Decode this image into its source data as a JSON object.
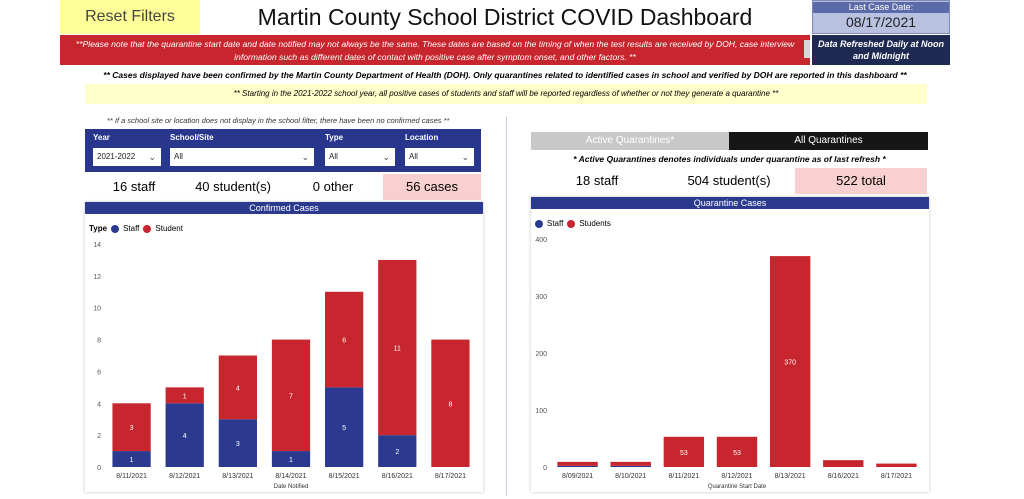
{
  "header": {
    "reset_label": "Reset Filters",
    "title": "Martin County School District COVID Dashboard",
    "last_case_label": "Last Case Date:",
    "last_case_value": "08/17/2021",
    "refresh_note": "Data Refreshed Daily at Noon and Midnight"
  },
  "banner": {
    "text": "**Please note that the quarantine start date and date notified may not always be the same. These dates are based on the timing of when the test results are received by DOH, case interview information such as different dates of contact with positive case after symptom onset, and other factors. **"
  },
  "notes": {
    "dho_note": "** Cases displayed have been confirmed by the Martin County Department of Health (DOH). Only quarantines related to identified cases in school and verified by DOH are reported in this dashboard **",
    "year_note": "**  Starting in the 2021-2022 school year, all positive cases of students and staff will be reported regardless of whether or not they generate a quarantine **",
    "school_note": "** If a school site or location does not display in the school filter, there have been no confirmed cases  **"
  },
  "filters": {
    "year": {
      "label": "Year",
      "value": "2021-2022"
    },
    "school": {
      "label": "School/Site",
      "value": "All"
    },
    "type": {
      "label": "Type",
      "value": "All"
    },
    "location": {
      "label": "Location",
      "value": "All"
    }
  },
  "cases_stats": {
    "staff": "16 staff",
    "students": "40 student(s)",
    "other": "0 other",
    "total": "56 cases"
  },
  "quarantine_tabs": {
    "active": "Active Quarantines*",
    "all": "All Quarantines"
  },
  "active_note": "* Active Quarantines denotes individuals under quarantine as of last refresh *",
  "quarantine_stats": {
    "staff": "18 staff",
    "students": "504 student(s)",
    "total": "522 total"
  },
  "colors": {
    "staff": "#2b3a8f",
    "student": "#c8262e",
    "accent_navy": "#28368c"
  },
  "chart_data": [
    {
      "type": "bar",
      "stacked": true,
      "title": "Confirmed Cases",
      "legend_title": "Type",
      "categories": [
        "8/11/2021",
        "8/12/2021",
        "8/13/2021",
        "8/14/2021",
        "8/15/2021",
        "8/16/2021",
        "8/17/2021"
      ],
      "series": [
        {
          "name": "Staff",
          "values": [
            1,
            4,
            3,
            1,
            5,
            2,
            0
          ]
        },
        {
          "name": "Student",
          "values": [
            3,
            1,
            4,
            7,
            6,
            11,
            8
          ]
        }
      ],
      "xlabel": "Date Notified",
      "ylim": [
        0,
        14
      ],
      "yticks": [
        0,
        2,
        4,
        6,
        8,
        10,
        12,
        14
      ],
      "legend": "top-left"
    },
    {
      "type": "bar",
      "stacked": true,
      "title": "Quarantine Cases",
      "categories": [
        "8/09/2021",
        "8/10/2021",
        "8/11/2021",
        "8/12/2021",
        "8/13/2021",
        "8/16/2021",
        "8/17/2021"
      ],
      "series": [
        {
          "name": "Staff",
          "values": [
            2,
            2,
            0,
            0,
            0,
            0,
            0
          ]
        },
        {
          "name": "Students",
          "values": [
            7,
            7,
            53,
            53,
            370,
            12,
            6
          ]
        }
      ],
      "data_labels": [
        null,
        null,
        "53",
        "53",
        "370",
        null,
        null
      ],
      "xlabel": "Quarantine Start Date",
      "ylim": [
        0,
        400
      ],
      "yticks": [
        0,
        100,
        200,
        300,
        400
      ],
      "legend": "top-left"
    }
  ]
}
